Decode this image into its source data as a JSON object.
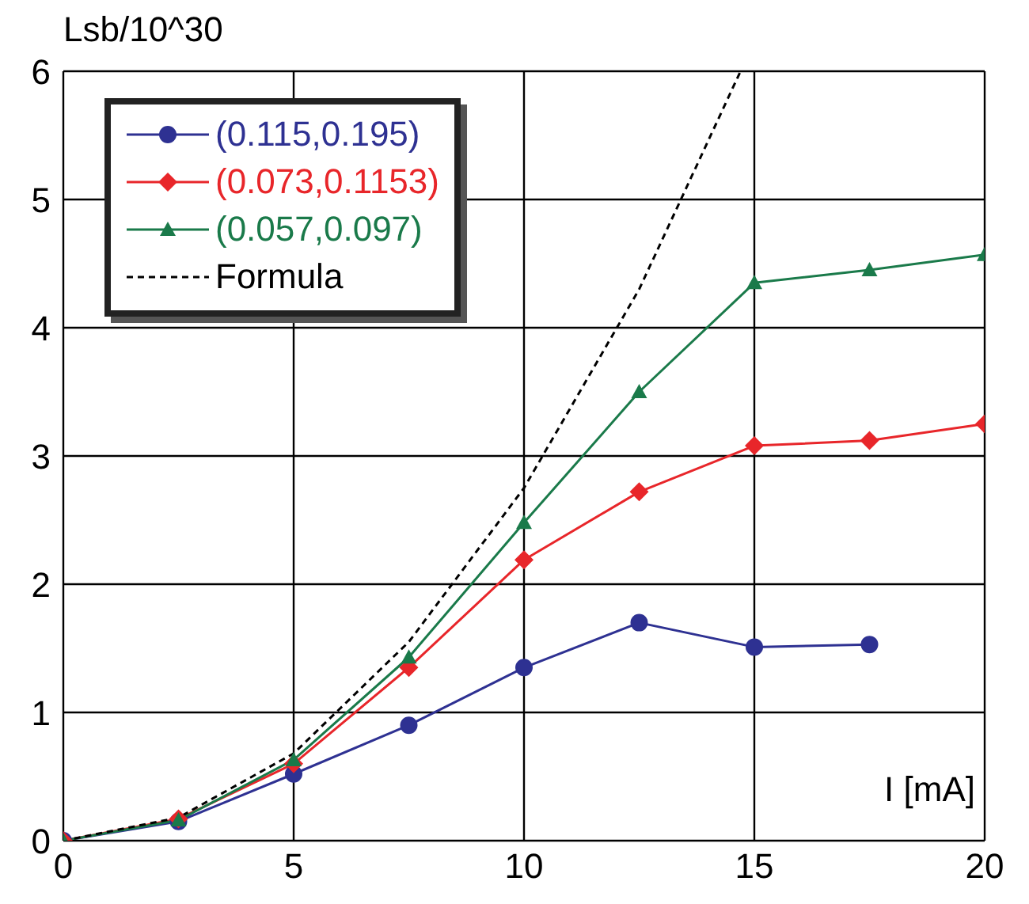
{
  "chart_data": {
    "type": "line",
    "ylabel": "Lsb/10^30",
    "xlabel": "I [mA]",
    "xlim": [
      0,
      20
    ],
    "xticks": [
      0,
      5,
      10,
      15,
      20
    ],
    "ylim": [
      0,
      6
    ],
    "yticks": [
      0,
      1,
      2,
      3,
      4,
      5,
      6
    ],
    "grid": true,
    "legend": "top left",
    "series": [
      {
        "name": "(0.115,0.195)",
        "color": "#2e3192",
        "marker": "circle",
        "line_style": "solid",
        "x": [
          0,
          2.5,
          5,
          7.5,
          10,
          12.5,
          15,
          17.5
        ],
        "values": [
          0,
          0.15,
          0.52,
          0.9,
          1.35,
          1.7,
          1.51,
          1.53
        ]
      },
      {
        "name": "(0.073,0.1153)",
        "color": "#e8262a",
        "marker": "diamond",
        "line_style": "solid",
        "x": [
          0,
          2.5,
          5,
          7.5,
          10,
          12.5,
          15,
          17.5,
          20
        ],
        "values": [
          0,
          0.17,
          0.6,
          1.35,
          2.19,
          2.72,
          3.08,
          3.12,
          3.25
        ]
      },
      {
        "name": "(0.057,0.097)",
        "color": "#1a7a4a",
        "marker": "triangle",
        "line_style": "solid",
        "x": [
          0,
          2.5,
          5,
          7.5,
          10,
          12.5,
          15,
          17.5,
          20
        ],
        "values": [
          0,
          0.16,
          0.63,
          1.43,
          2.48,
          3.5,
          4.35,
          4.45,
          4.57
        ]
      },
      {
        "name": "Formula",
        "color": "#000000",
        "marker": "none",
        "line_style": "dashed",
        "x": [
          0,
          2.5,
          5,
          7.5,
          10,
          12.5,
          14.7
        ],
        "values": [
          0,
          0.18,
          0.68,
          1.55,
          2.75,
          4.3,
          6
        ]
      }
    ]
  }
}
